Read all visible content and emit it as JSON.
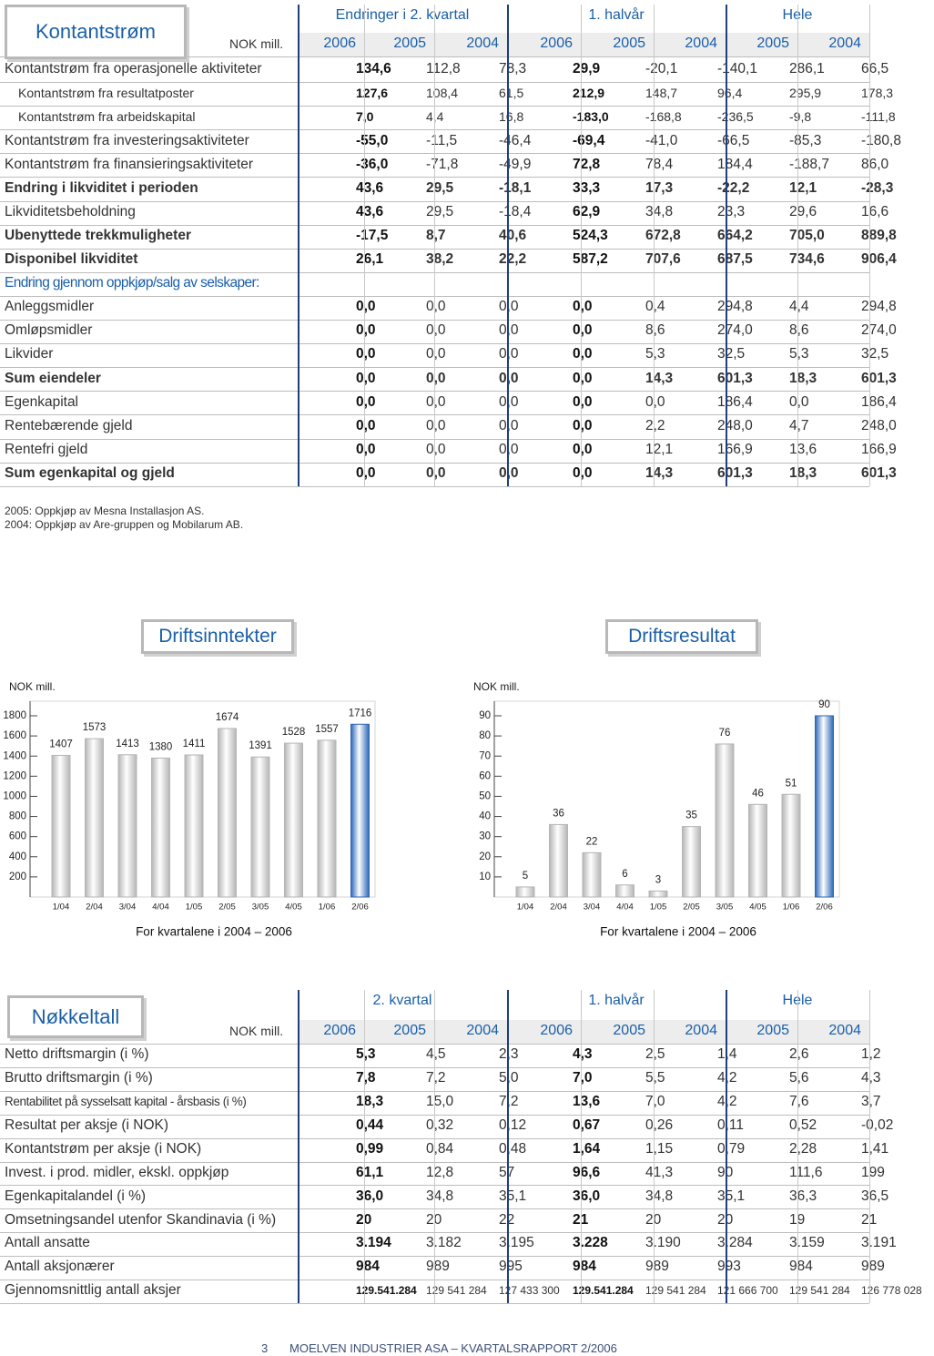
{
  "cashflow": {
    "title": "Kontantstrøm",
    "unit": "NOK mill.",
    "groups": [
      "Endringer i 2. kvartal",
      "1. halvår",
      "Hele"
    ],
    "years": [
      "2006",
      "2005",
      "2004",
      "2006",
      "2005",
      "2004",
      "2005",
      "2004"
    ],
    "rows": [
      {
        "label": "Kontantstrøm fra operasjonelle aktiviteter",
        "values": [
          "134,6",
          "112,8",
          "78,3",
          "29,9",
          "-20,1",
          "-140,1",
          "286,1",
          "66,5"
        ]
      },
      {
        "label": "Kontantstrøm fra resultatposter",
        "values": [
          "127,6",
          "108,4",
          "61,5",
          "212,9",
          "148,7",
          "96,4",
          "295,9",
          "178,3"
        ]
      },
      {
        "label": "Kontantstrøm fra arbeidskapital",
        "values": [
          "7,0",
          "4,4",
          "16,8",
          "-183,0",
          "-168,8",
          "-236,5",
          "-9,8",
          "-111,8"
        ]
      },
      {
        "label": "Kontantstrøm fra investeringsaktiviteter",
        "values": [
          "-55,0",
          "-11,5",
          "-46,4",
          "-69,4",
          "-41,0",
          "-66,5",
          "-85,3",
          "-180,8"
        ]
      },
      {
        "label": "Kontantstrøm fra finansieringsaktiviteter",
        "values": [
          "-36,0",
          "-71,8",
          "-49,9",
          "72,8",
          "78,4",
          "184,4",
          "-188,7",
          "86,0"
        ]
      },
      {
        "label": "Endring i likviditet i perioden",
        "values": [
          "43,6",
          "29,5",
          "-18,1",
          "33,3",
          "17,3",
          "-22,2",
          "12,1",
          "-28,3"
        ]
      },
      {
        "label": "Likviditetsbeholdning",
        "values": [
          "43,6",
          "29,5",
          "-18,4",
          "62,9",
          "34,8",
          "23,3",
          "29,6",
          "16,6"
        ]
      },
      {
        "label": "Ubenyttede trekkmuligheter",
        "values": [
          "-17,5",
          "8,7",
          "40,6",
          "524,3",
          "672,8",
          "664,2",
          "705,0",
          "889,8"
        ]
      },
      {
        "label": "Disponibel likviditet",
        "values": [
          "26,1",
          "38,2",
          "22,2",
          "587,2",
          "707,6",
          "687,5",
          "734,6",
          "906,4"
        ]
      },
      {
        "label": "Endring gjennom oppkjøp/salg av selskaper:"
      },
      {
        "label": "Anleggsmidler",
        "values": [
          "0,0",
          "0,0",
          "0,0",
          "0,0",
          "0,4",
          "294,8",
          "4,4",
          "294,8"
        ]
      },
      {
        "label": "Omløpsmidler",
        "values": [
          "0,0",
          "0,0",
          "0,0",
          "0,0",
          "8,6",
          "274,0",
          "8,6",
          "274,0"
        ]
      },
      {
        "label": "Likvider",
        "values": [
          "0,0",
          "0,0",
          "0,0",
          "0,0",
          "5,3",
          "32,5",
          "5,3",
          "32,5"
        ]
      },
      {
        "label": "Sum eiendeler",
        "values": [
          "0,0",
          "0,0",
          "0,0",
          "0,0",
          "14,3",
          "601,3",
          "18,3",
          "601,3"
        ]
      },
      {
        "label": "Egenkapital",
        "values": [
          "0,0",
          "0,0",
          "0,0",
          "0,0",
          "0,0",
          "186,4",
          "0,0",
          "186,4"
        ]
      },
      {
        "label": "Rentebærende gjeld",
        "values": [
          "0,0",
          "0,0",
          "0,0",
          "0,0",
          "2,2",
          "248,0",
          "4,7",
          "248,0"
        ]
      },
      {
        "label": "Rentefri gjeld",
        "values": [
          "0,0",
          "0,0",
          "0,0",
          "0,0",
          "12,1",
          "166,9",
          "13,6",
          "166,9"
        ]
      },
      {
        "label": "Sum egenkapital og gjeld",
        "values": [
          "0,0",
          "0,0",
          "0,0",
          "0,0",
          "14,3",
          "601,3",
          "18,3",
          "601,3"
        ]
      }
    ]
  },
  "notes": [
    "2005: Oppkjøp av Mesna Installasjon AS.",
    "2004: Oppkjøp av Are-gruppen og Mobilarum AB."
  ],
  "charts": [
    {
      "type": "bar",
      "title": "Driftsinntekter",
      "unit": "NOK mill.",
      "categories": [
        "1/04",
        "2/04",
        "3/04",
        "4/04",
        "1/05",
        "2/05",
        "3/05",
        "4/05",
        "1/06",
        "2/06"
      ],
      "values": [
        1407,
        1573,
        1413,
        1380,
        1411,
        1674,
        1391,
        1528,
        1557,
        1716
      ],
      "colors": [
        "#b5b5b5",
        "#b5b5b5",
        "#b5b5b5",
        "#b5b5b5",
        "#b5b5b5",
        "#b5b5b5",
        "#b5b5b5",
        "#b5b5b5",
        "#b5b5b5",
        "#2a66b8"
      ],
      "ylim": [
        0,
        1800
      ],
      "yticks": [
        200,
        400,
        600,
        800,
        1000,
        1200,
        1400,
        1600,
        1800
      ],
      "xlabel": "For kvartalene i 2004 – 2006"
    },
    {
      "type": "bar",
      "title": "Driftsresultat",
      "unit": "NOK mill.",
      "categories": [
        "1/04",
        "2/04",
        "3/04",
        "4/04",
        "1/05",
        "2/05",
        "3/05",
        "4/05",
        "1/06",
        "2/06"
      ],
      "values": [
        5,
        36,
        22,
        6,
        3,
        35,
        76,
        46,
        51,
        90
      ],
      "colors": [
        "#b5b5b5",
        "#b5b5b5",
        "#b5b5b5",
        "#b5b5b5",
        "#b5b5b5",
        "#b5b5b5",
        "#b5b5b5",
        "#b5b5b5",
        "#b5b5b5",
        "#2a66b8"
      ],
      "ylim": [
        0,
        90
      ],
      "yticks": [
        10,
        20,
        30,
        40,
        50,
        60,
        70,
        80,
        90
      ],
      "xlabel": "For kvartalene i 2004 – 2006"
    }
  ],
  "key_figures": {
    "title": "Nøkkeltall",
    "unit": "NOK mill.",
    "groups": [
      "2. kvartal",
      "1. halvår",
      "Hele"
    ],
    "years": [
      "2006",
      "2005",
      "2004",
      "2006",
      "2005",
      "2004",
      "2005",
      "2004"
    ],
    "rows": [
      {
        "label": "Netto driftsmargin (i %)",
        "values": [
          "5,3",
          "4,5",
          "2,3",
          "4,3",
          "2,5",
          "1,4",
          "2,6",
          "1,2"
        ]
      },
      {
        "label": "Brutto driftsmargin (i %)",
        "values": [
          "7,8",
          "7,2",
          "5,0",
          "7,0",
          "5,5",
          "4,2",
          "5,6",
          "4,3"
        ]
      },
      {
        "label": "Rentabilitet på sysselsatt kapital - årsbasis (i %)",
        "values": [
          "18,3",
          "15,0",
          "7,2",
          "13,6",
          "7,0",
          "4,2",
          "7,6",
          "3,7"
        ]
      },
      {
        "label": "Resultat per aksje (i NOK)",
        "values": [
          "0,44",
          "0,32",
          "0,12",
          "0,67",
          "0,26",
          "0,11",
          "0,52",
          "-0,02"
        ]
      },
      {
        "label": "Kontantstrøm per aksje (i NOK)",
        "values": [
          "0,99",
          "0,84",
          "0,48",
          "1,64",
          "1,15",
          "0,79",
          "2,28",
          "1,41"
        ]
      },
      {
        "label": "Invest. i prod. midler, ekskl. oppkjøp",
        "values": [
          "61,1",
          "12,8",
          "57",
          "96,6",
          "41,3",
          "90",
          "111,6",
          "199"
        ]
      },
      {
        "label": "Egenkapitalandel (i %)",
        "values": [
          "36,0",
          "34,8",
          "35,1",
          "36,0",
          "34,8",
          "35,1",
          "36,3",
          "36,5"
        ]
      },
      {
        "label": "Omsetningsandel utenfor Skandinavia (i %)",
        "values": [
          "20",
          "20",
          "22",
          "21",
          "20",
          "20",
          "19",
          "21"
        ]
      },
      {
        "label": "Antall ansatte",
        "values": [
          "3.194",
          "3.182",
          "3.195",
          "3.228",
          "3.190",
          "3.284",
          "3.159",
          "3.191"
        ]
      },
      {
        "label": "Antall aksjonærer",
        "values": [
          "984",
          "989",
          "995",
          "984",
          "989",
          "993",
          "984",
          "989"
        ]
      },
      {
        "label": "Gjennomsnittlig antall aksjer",
        "values": [
          "129.541.284",
          "129 541 284",
          "127 433 300",
          "129.541.284",
          "129 541 284",
          "121 666 700",
          "129 541 284",
          "126 778 028"
        ]
      }
    ]
  },
  "footer": {
    "page": "3",
    "text": "MOELVEN INDUSTRIER ASA – KVARTALSRAPPORT 2/2006"
  }
}
